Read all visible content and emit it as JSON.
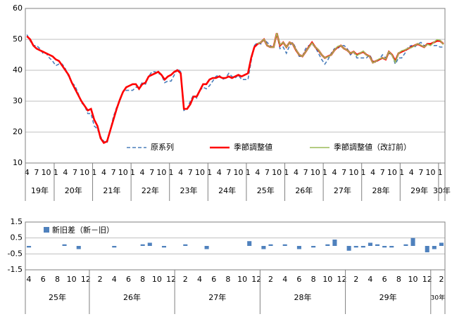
{
  "chart_data": [
    {
      "type": "line",
      "categories": [
        "4",
        null,
        null,
        "7",
        null,
        null,
        "10",
        null,
        null,
        "1",
        null,
        null,
        "4",
        null,
        null,
        "7",
        null,
        null,
        "10",
        null,
        null,
        "1",
        null,
        null,
        "4",
        null,
        null,
        "7",
        null,
        null,
        "10",
        null,
        null,
        "1",
        null,
        null,
        "4",
        null,
        null,
        "7",
        null,
        null,
        "10",
        null,
        null,
        "1",
        null,
        null,
        "4",
        null,
        null,
        "7",
        null,
        null,
        "10",
        null,
        null,
        "1",
        null,
        null,
        "4",
        null,
        null,
        "7",
        null,
        null,
        "10",
        null,
        null,
        "1",
        null,
        null,
        "4",
        null,
        null,
        "7",
        null,
        null,
        "10",
        null,
        null,
        "1",
        null,
        null,
        "4",
        null,
        null,
        "7",
        null,
        null,
        "10",
        null,
        null,
        "1",
        null,
        null,
        "4",
        null,
        null,
        "7",
        null,
        null,
        "10",
        null,
        null,
        "1",
        null,
        null,
        "4",
        null,
        null,
        "7",
        null,
        null,
        "10",
        null,
        null,
        "1",
        null,
        null,
        "4",
        null,
        null,
        "7",
        null,
        null,
        "10",
        null,
        null,
        "1",
        null
      ],
      "year_labels": [
        "19年",
        "20年",
        "21年",
        "22年",
        "23年",
        "24年",
        "25年",
        "26年",
        "27年",
        "28年",
        "29年",
        "30年"
      ],
      "ylim": [
        10,
        60
      ],
      "yticks": [
        10,
        20,
        30,
        40,
        50,
        60
      ],
      "series": [
        {
          "name": "原系列",
          "color": "#4a7ebb",
          "line_style": "dashed",
          "values": [
            51.5,
            49.5,
            48,
            48,
            47,
            45.5,
            45.5,
            44,
            43,
            41.5,
            42,
            42,
            40.5,
            38,
            36,
            35,
            32.5,
            29.5,
            28.5,
            26,
            26,
            22,
            21,
            18.5,
            17,
            16.5,
            20.5,
            25,
            28,
            30,
            33,
            33.5,
            33.5,
            33.5,
            34.5,
            34.5,
            36,
            35.5,
            38,
            39.5,
            39.5,
            39,
            38.5,
            36,
            36.5,
            36.5,
            38.5,
            40.5,
            39.5,
            27,
            27.5,
            30,
            32,
            31,
            33.5,
            34.5,
            34,
            35,
            36.5,
            38,
            38.5,
            37,
            37.5,
            39,
            38,
            37.5,
            38.5,
            37,
            37,
            37,
            43,
            48,
            49,
            48.5,
            50,
            49,
            48,
            47,
            52,
            47,
            47.5,
            45.5,
            48,
            49,
            47,
            44.5,
            44.5,
            47,
            48,
            48.5,
            47.5,
            45.5,
            43.5,
            42,
            43.5,
            45.5,
            47,
            47,
            48,
            48,
            47,
            45,
            46,
            44,
            44,
            44,
            44,
            45,
            43,
            42.5,
            43.5,
            45,
            44,
            45.5,
            45,
            42,
            44,
            44,
            45.5,
            47.5,
            48,
            47.5,
            48.5,
            49,
            48,
            48,
            48.5,
            48,
            48,
            47.5,
            47.5
          ]
        },
        {
          "name": "季節調整値",
          "color": "#ff0000",
          "line_style": "solid",
          "values": [
            51,
            50,
            48,
            47,
            46.5,
            46,
            45.5,
            45,
            44.5,
            43.5,
            43,
            41.5,
            40,
            38.5,
            36,
            34,
            32,
            30,
            28.5,
            27,
            27.5,
            24,
            22,
            18,
            16.5,
            17,
            20.5,
            24,
            27.5,
            30.5,
            33,
            34.5,
            35,
            35.5,
            35.5,
            34,
            35.5,
            36,
            38,
            38.5,
            39,
            39.5,
            38.5,
            37,
            38,
            38.5,
            39.5,
            40,
            39,
            27.5,
            27.5,
            29,
            31.5,
            31.5,
            33.5,
            35.5,
            35.5,
            37,
            37.5,
            37.5,
            38,
            37.5,
            37.5,
            38,
            37.5,
            38,
            38.5,
            38,
            38.5,
            39,
            44,
            47.5,
            48.5,
            49,
            50,
            48,
            47.5,
            47.5,
            52,
            48,
            49,
            47.5,
            49,
            48.5,
            46.5,
            45,
            44.5,
            46,
            47.5,
            49,
            47.5,
            46.5,
            45,
            44,
            44.5,
            45,
            46.5,
            47.5,
            48,
            47,
            46.5,
            45.5,
            46,
            45,
            45.5,
            46,
            45,
            44.5,
            42.5,
            43,
            43.5,
            44,
            43.5,
            46,
            45,
            43,
            45.5,
            46,
            46.5,
            47,
            47.5,
            48,
            48.5,
            48,
            47.5,
            48.5,
            48.5,
            49,
            49.5,
            49.5,
            48.5
          ]
        },
        {
          "name": "季節調整値（改訂前）",
          "color": "#9bbb59",
          "line_style": "solid",
          "values": [
            null,
            null,
            null,
            null,
            null,
            null,
            null,
            null,
            null,
            null,
            null,
            null,
            null,
            null,
            null,
            null,
            null,
            null,
            null,
            null,
            null,
            null,
            null,
            null,
            null,
            null,
            null,
            null,
            null,
            null,
            null,
            null,
            null,
            null,
            null,
            null,
            null,
            null,
            null,
            null,
            null,
            null,
            null,
            null,
            null,
            null,
            null,
            null,
            null,
            null,
            null,
            null,
            null,
            null,
            null,
            null,
            null,
            null,
            null,
            null,
            null,
            null,
            null,
            null,
            null,
            null,
            null,
            null,
            null,
            null,
            null,
            null,
            48.6,
            49,
            50,
            48,
            47.5,
            47.4,
            52,
            48.2,
            49,
            47.5,
            49,
            48.5,
            46.6,
            45,
            44.5,
            46,
            47.4,
            48.8,
            47.5,
            46.6,
            45,
            44,
            44.4,
            45,
            46.5,
            47.7,
            48,
            47,
            46.5,
            45.5,
            46,
            44.7,
            45.5,
            46.2,
            44.9,
            44.5,
            42.4,
            43,
            43.7,
            44,
            43.6,
            46,
            44.9,
            42.6,
            45.5,
            46.3,
            46.6,
            47.1,
            47.3,
            47.9,
            48.6,
            48.1,
            47.5,
            48.4,
            48,
            49,
            49.9,
            49.7,
            48.3
          ]
        }
      ]
    },
    {
      "type": "bar",
      "categories": [
        "4",
        null,
        "6",
        null,
        "8",
        null,
        "10",
        null,
        "12",
        null,
        "2",
        null,
        "4",
        null,
        "6",
        null,
        "8",
        null,
        "10",
        null,
        "12",
        null,
        "2",
        null,
        "4",
        null,
        "6",
        null,
        "8",
        null,
        "10",
        null,
        "12",
        null,
        "2",
        null,
        "4",
        null,
        "6",
        null,
        "8",
        null,
        "10",
        null,
        "12",
        null,
        "2",
        null,
        "4",
        null,
        "6",
        null,
        "8",
        null,
        "10",
        null,
        "12",
        null,
        "2"
      ],
      "year_labels": [
        "25年",
        "26年",
        "27年",
        "28年",
        "29年",
        "30年"
      ],
      "ylim": [
        -1.5,
        1.5
      ],
      "yticks": [
        1.5,
        0.5,
        -0.5,
        -1.5
      ],
      "series": [
        {
          "name": "新旧差（新－旧）",
          "color": "#4f81bd",
          "values": [
            -0.1,
            0,
            0,
            0,
            0,
            0.1,
            0,
            -0.2,
            0,
            0,
            0,
            0,
            -0.1,
            0,
            0,
            0,
            0.1,
            0.2,
            0,
            -0.1,
            0,
            0,
            0.1,
            0,
            0,
            -0.2,
            0,
            0,
            0,
            0,
            0,
            0.3,
            0,
            -0.2,
            0.1,
            0,
            0.1,
            0,
            -0.2,
            0,
            -0.1,
            0,
            0.1,
            0.4,
            0,
            -0.3,
            -0.1,
            -0.1,
            0.2,
            0.1,
            -0.1,
            -0.1,
            0,
            0.1,
            0.5,
            0,
            -0.4,
            -0.2,
            0.2
          ]
        }
      ]
    }
  ]
}
